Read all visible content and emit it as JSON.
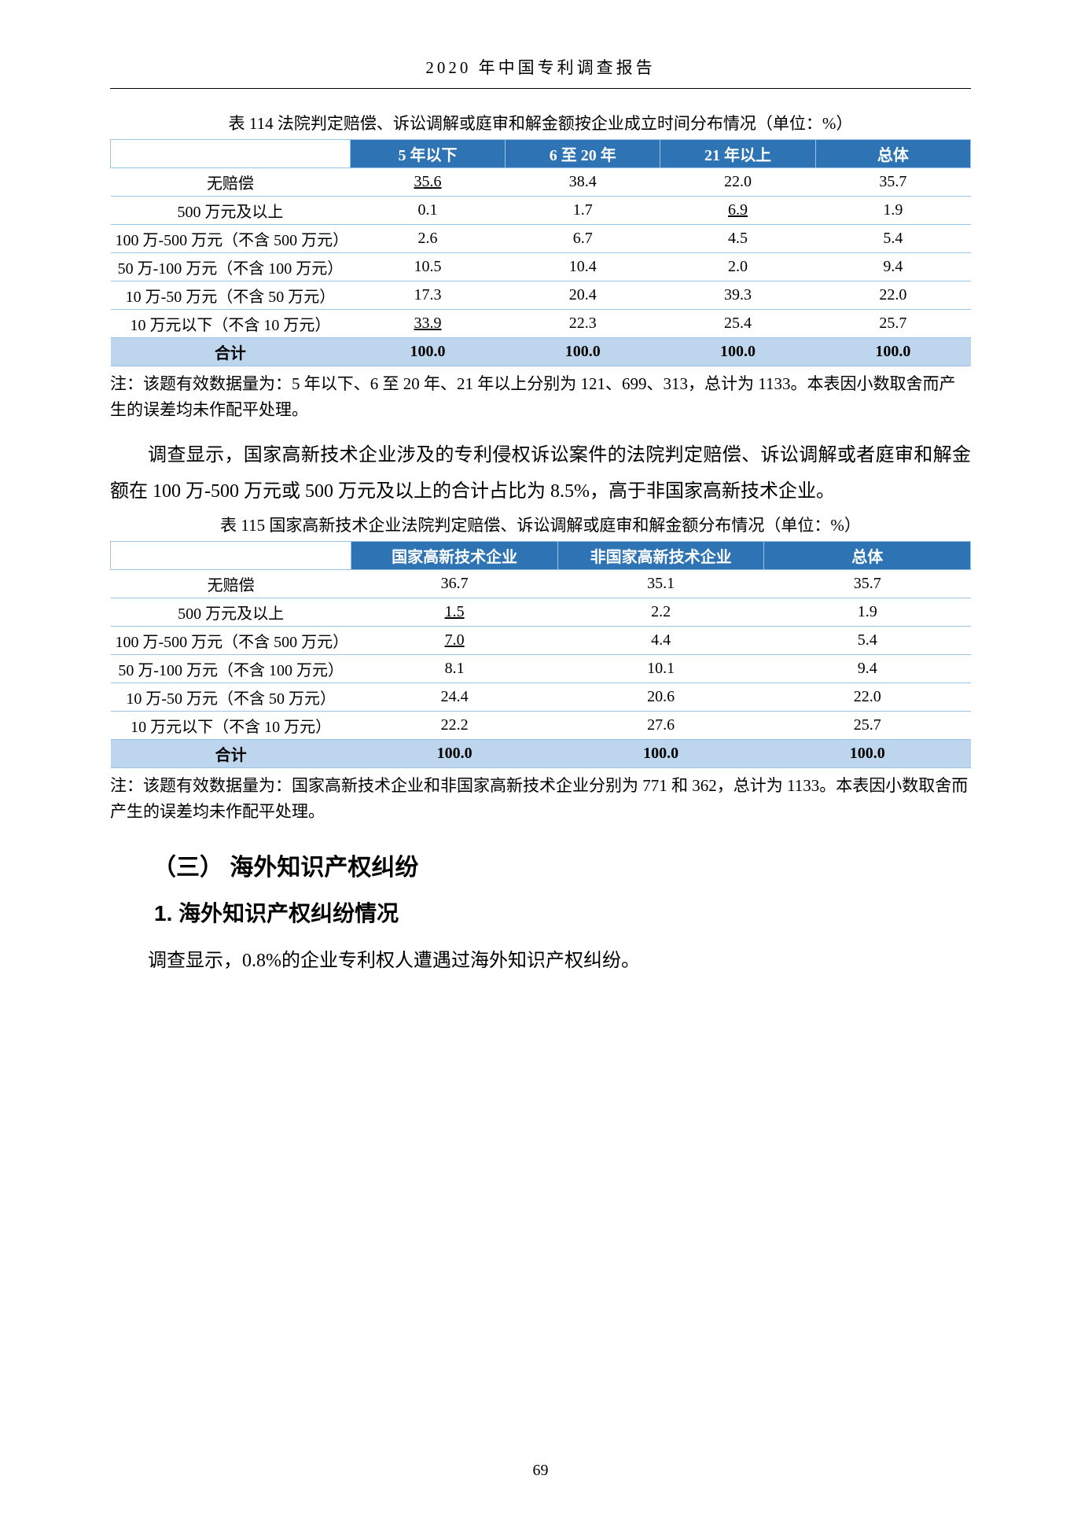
{
  "header": "2020 年中国专利调查报告",
  "pageNumber": "69",
  "table1": {
    "title": "表 114 法院判定赔偿、诉讼调解或庭审和解金额按企业成立时间分布情况（单位：%）",
    "columns": [
      "",
      "5 年以下",
      "6 至 20 年",
      "21 年以上",
      "总体"
    ],
    "rowLabels": [
      "无赔偿",
      "500 万元及以上",
      "100 万-500 万元（不含 500 万元）",
      "50 万-100 万元（不含 100 万元）",
      "10 万-50 万元（不含 50 万元）",
      "10 万元以下（不含 10 万元）"
    ],
    "rows": [
      [
        {
          "v": "35.6",
          "u": true
        },
        {
          "v": "38.4"
        },
        {
          "v": "22.0"
        },
        {
          "v": "35.7"
        }
      ],
      [
        {
          "v": "0.1"
        },
        {
          "v": "1.7"
        },
        {
          "v": "6.9",
          "u": true
        },
        {
          "v": "1.9"
        }
      ],
      [
        {
          "v": "2.6"
        },
        {
          "v": "6.7"
        },
        {
          "v": "4.5"
        },
        {
          "v": "5.4"
        }
      ],
      [
        {
          "v": "10.5"
        },
        {
          "v": "10.4"
        },
        {
          "v": "2.0"
        },
        {
          "v": "9.4"
        }
      ],
      [
        {
          "v": "17.3"
        },
        {
          "v": "20.4"
        },
        {
          "v": "39.3"
        },
        {
          "v": "22.0"
        }
      ],
      [
        {
          "v": "33.9",
          "u": true
        },
        {
          "v": "22.3"
        },
        {
          "v": "25.4"
        },
        {
          "v": "25.7"
        }
      ]
    ],
    "totalLabel": "合计",
    "totals": [
      "100.0",
      "100.0",
      "100.0",
      "100.0"
    ],
    "note": "注：该题有效数据量为：5 年以下、6 至 20 年、21 年以上分别为 121、699、313，总计为 1133。本表因小数取舍而产生的误差均未作配平处理。"
  },
  "paragraph1": "调查显示，国家高新技术企业涉及的专利侵权诉讼案件的法院判定赔偿、诉讼调解或者庭审和解金额在 100 万-500 万元或 500 万元及以上的合计占比为 8.5%，高于非国家高新技术企业。",
  "table2": {
    "title": "表 115 国家高新技术企业法院判定赔偿、诉讼调解或庭审和解金额分布情况（单位：%）",
    "columns": [
      "",
      "国家高新技术企业",
      "非国家高新技术企业",
      "总体"
    ],
    "rowLabels": [
      "无赔偿",
      "500 万元及以上",
      "100 万-500 万元（不含 500 万元）",
      "50 万-100 万元（不含 100 万元）",
      "10 万-50 万元（不含 50 万元）",
      "10 万元以下（不含 10 万元）"
    ],
    "rows": [
      [
        {
          "v": "36.7"
        },
        {
          "v": "35.1"
        },
        {
          "v": "35.7"
        }
      ],
      [
        {
          "v": "1.5",
          "u": true
        },
        {
          "v": "2.2"
        },
        {
          "v": "1.9"
        }
      ],
      [
        {
          "v": "7.0",
          "u": true
        },
        {
          "v": "4.4"
        },
        {
          "v": "5.4"
        }
      ],
      [
        {
          "v": "8.1"
        },
        {
          "v": "10.1"
        },
        {
          "v": "9.4"
        }
      ],
      [
        {
          "v": "24.4"
        },
        {
          "v": "20.6"
        },
        {
          "v": "22.0"
        }
      ],
      [
        {
          "v": "22.2"
        },
        {
          "v": "27.6"
        },
        {
          "v": "25.7"
        }
      ]
    ],
    "totalLabel": "合计",
    "totals": [
      "100.0",
      "100.0",
      "100.0"
    ],
    "note": "注：该题有效数据量为：国家高新技术企业和非国家高新技术企业分别为 771 和 362，总计为 1133。本表因小数取舍而产生的误差均未作配平处理。"
  },
  "sectionHeading": "（三） 海外知识产权纠纷",
  "subHeading": "1. 海外知识产权纠纷情况",
  "paragraph2": "调查显示，0.8%的企业专利权人遭遇过海外知识产权纠纷。",
  "colors": {
    "headerBg": "#2e74b5",
    "headerText": "#ffffff",
    "borderColor": "#9cc2e5",
    "totalBg": "#bdd6ee"
  }
}
